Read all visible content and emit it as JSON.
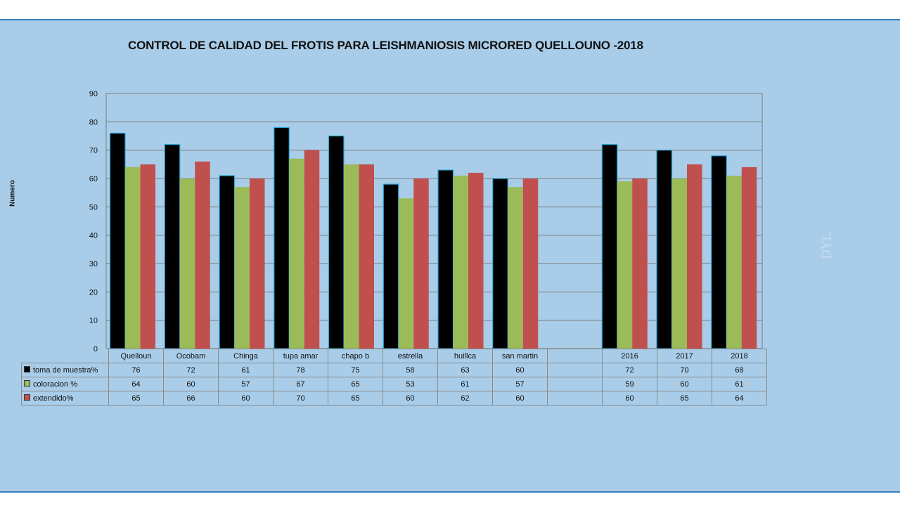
{
  "chart_data": {
    "type": "bar",
    "title": "CONTROL DE CALIDAD DEL FROTIS PARA LEISHMANIOSIS MICRORED QUELLOUNO -2018",
    "ylabel": "Numero",
    "xlabel": "",
    "ylim": [
      0,
      90
    ],
    "yticks": [
      0,
      10,
      20,
      30,
      40,
      50,
      60,
      70,
      80,
      90
    ],
    "grid": true,
    "legend": "data-table",
    "categories": [
      "Quelloun",
      "Ocobam",
      "Chinga",
      "tupa amar",
      "chapo b",
      "estrella",
      "huillca",
      "san martin",
      "",
      "2016",
      "2017",
      "2018"
    ],
    "series": [
      {
        "name": "toma de muestra%",
        "color": "#000000",
        "values": [
          76,
          72,
          61,
          78,
          75,
          58,
          63,
          60,
          null,
          72,
          70,
          68
        ]
      },
      {
        "name": "coloracion %",
        "color": "#9bbb59",
        "values": [
          64,
          60,
          57,
          67,
          65,
          53,
          61,
          57,
          null,
          59,
          60,
          61
        ]
      },
      {
        "name": "extendido%",
        "color": "#c0504d",
        "values": [
          65,
          66,
          60,
          70,
          65,
          60,
          62,
          60,
          null,
          60,
          65,
          64
        ]
      }
    ]
  },
  "watermark": "DYL",
  "colors": {
    "background": "#a9cde9",
    "frame_border": "#3a7fc0",
    "bar_outline": "#2aa6d8"
  }
}
